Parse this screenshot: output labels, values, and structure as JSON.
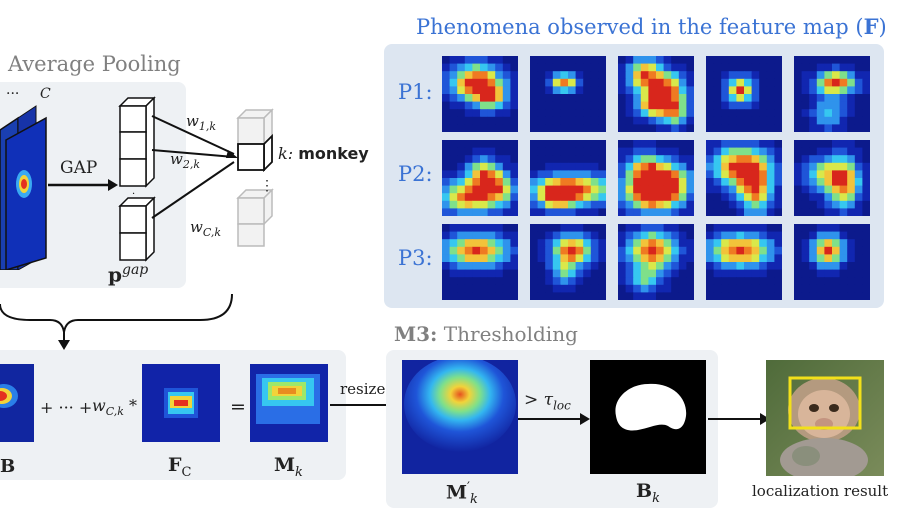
{
  "panel_pooling": {
    "title": "Average Pooling",
    "channel_dots": "···",
    "channel_label": "C",
    "gap_label": "GAP",
    "pgap_base": "p",
    "pgap_sup": "gap",
    "weights": [
      {
        "base": "w",
        "sub": "1,k"
      },
      {
        "base": "w",
        "sub": "2,k"
      },
      {
        "base": "w",
        "sub": "C,k"
      }
    ],
    "vdots": "⋮",
    "class_prefix": "k:",
    "class_name": "monkey"
  },
  "panel_feature": {
    "title_text": "Phenomena observed in the feature map (",
    "title_bold": "F",
    "title_close": ")",
    "rows": [
      "P1:",
      "P2:",
      "P3:"
    ]
  },
  "panel_sum": {
    "left_label": "B",
    "plus_dots": "+ ··· +",
    "weight_base": "w",
    "weight_sub": "C,k",
    "times": "*",
    "equals": "=",
    "fc_base": "F",
    "fc_sub": "C",
    "mk_base": "M",
    "mk_sub": "k",
    "resize_label": "resize"
  },
  "panel_threshold": {
    "title_bold": "M3:",
    "title_text": "Thresholding",
    "cond_gt": ">",
    "cond_tau": "τ",
    "cond_sub": "loc",
    "mprime_base": "M",
    "mprime_sup": "′",
    "mprime_sub": "k",
    "bk_base": "B",
    "bk_sub": "k"
  },
  "result": {
    "label": "localization result"
  }
}
